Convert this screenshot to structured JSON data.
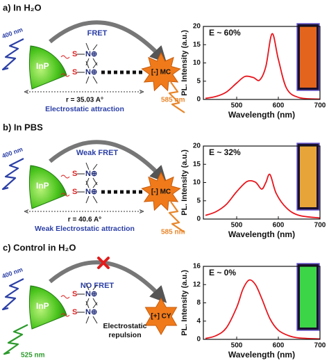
{
  "diagrams": [
    {
      "label": "a) In H₂O",
      "excitation": "400 nm",
      "particle": "InP",
      "transfer": "FRET",
      "sulfur": [
        "S",
        "S"
      ],
      "ammonium": [
        "N⊕",
        "N⊕"
      ],
      "dye": "[-] MC",
      "emission": "585 nm",
      "distance": "r = 35.03 A°",
      "interaction": [
        "Electrostatic attraction"
      ]
    },
    {
      "label": "b) In PBS",
      "excitation": "400 nm",
      "particle": "InP",
      "transfer": "Weak FRET",
      "sulfur": [
        "S",
        "S"
      ],
      "ammonium": [
        "N⊕",
        "N⊕"
      ],
      "dye": "[-] MC",
      "emission": "585 nm",
      "distance": "r = 40.6 A°",
      "interaction": [
        "Weak Electrostatic attraction"
      ]
    },
    {
      "label": "c) Control in H₂O",
      "excitation": "400 nm",
      "particle": "InP",
      "transfer": "NO FRET",
      "sulfur": [
        "S",
        "S"
      ],
      "ammonium": [
        "N⊕",
        "N⊕"
      ],
      "dye": "[+] CY",
      "emission": "525 nm",
      "interaction": [
        "Electrostatic",
        "repulsion"
      ]
    }
  ],
  "chart_data": [
    {
      "type": "line",
      "annotation": "E ~ 60%",
      "x_label": "Wavelength (nm)",
      "y_label": "PL. Intensity (a.u.)",
      "color": "#e8141b",
      "x": [
        425,
        450,
        475,
        500,
        520,
        540,
        555,
        570,
        585,
        600,
        620,
        650,
        700
      ],
      "values": [
        0.3,
        0.8,
        2,
        4.5,
        6.3,
        6,
        5.3,
        9,
        18,
        11,
        3,
        0.5,
        0.1
      ],
      "xlim": [
        420,
        700
      ],
      "xticks": [
        500,
        600,
        700
      ],
      "ylim": [
        0,
        20
      ],
      "yticks": [
        0,
        5,
        10,
        15,
        20
      ],
      "inset_color": "#ee6a1c"
    },
    {
      "type": "line",
      "annotation": "E ~ 32%",
      "x_label": "Wavelength (nm)",
      "y_label": "PL. Intensity (a.u.)",
      "color": "#e8141b",
      "x": [
        425,
        450,
        475,
        500,
        525,
        545,
        560,
        570,
        580,
        595,
        620,
        650,
        700
      ],
      "values": [
        1,
        2,
        4,
        7.5,
        10.3,
        10.1,
        8.2,
        10,
        12.2,
        7,
        3,
        1,
        0.3
      ],
      "xlim": [
        420,
        700
      ],
      "xticks": [
        500,
        600,
        700
      ],
      "ylim": [
        0,
        20
      ],
      "yticks": [
        0,
        5,
        10,
        15,
        20
      ],
      "inset_color": "#f2ae3a"
    },
    {
      "type": "line",
      "annotation": "E ~ 0%",
      "x_label": "Wavelength (nm)",
      "y_label": "PL. Intensity (a.u.)",
      "color": "#e8141b",
      "x": [
        425,
        450,
        475,
        500,
        515,
        530,
        545,
        560,
        580,
        600,
        625,
        650,
        700
      ],
      "values": [
        0.2,
        0.8,
        2.5,
        7,
        11,
        13,
        12,
        9,
        4.5,
        2,
        0.8,
        0.3,
        0.1
      ],
      "xlim": [
        420,
        700
      ],
      "xticks": [
        500,
        600,
        700
      ],
      "ylim": [
        0,
        16
      ],
      "yticks": [
        0,
        4,
        8,
        12,
        16
      ],
      "inset_color": "#3fe04a"
    }
  ]
}
